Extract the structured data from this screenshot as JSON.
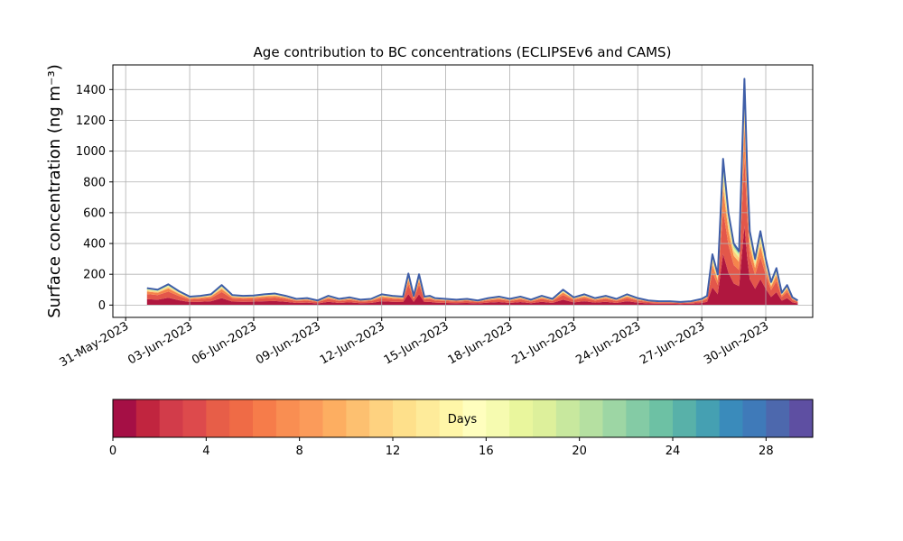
{
  "chart_data": {
    "type": "area",
    "title": "Age contribution to BC concentrations (ECLIPSEv6 and CAMS)",
    "xlabel": "",
    "ylabel": "Surface concentration (ng m⁻³)",
    "ylim": [
      -80,
      1560
    ],
    "y_ticks": [
      0,
      200,
      400,
      600,
      800,
      1000,
      1200,
      1400
    ],
    "x_ticks": [
      "31-May-2023",
      "03-Jun-2023",
      "06-Jun-2023",
      "09-Jun-2023",
      "12-Jun-2023",
      "15-Jun-2023",
      "18-Jun-2023",
      "21-Jun-2023",
      "24-Jun-2023",
      "27-Jun-2023",
      "30-Jun-2023"
    ],
    "x_start": "01-Jun-2023",
    "x_end": "01-Jul-2023",
    "grid": true,
    "colorbar": {
      "label": "Days",
      "range": [
        0,
        30
      ],
      "ticks": [
        0,
        4,
        8,
        12,
        16,
        20,
        24,
        28
      ],
      "colors": [
        "#a50f45",
        "#c1253f",
        "#d23c4a",
        "#dd4a4c",
        "#e75e48",
        "#ef6b46",
        "#f67c4a",
        "#f98e52",
        "#fb9b5a",
        "#fdae61",
        "#fdc070",
        "#fed280",
        "#fee08b",
        "#feeb9a",
        "#fff6a8",
        "#fffebe",
        "#f6fbb0",
        "#e9f69d",
        "#ddf09b",
        "#c8e89e",
        "#b5e0a1",
        "#9dd6a4",
        "#84cba5",
        "#6dc1a4",
        "#58b1a9",
        "#45a0b2",
        "#3a8bbb",
        "#3f7ab9",
        "#4d68ad",
        "#5e4fa2"
      ]
    },
    "total_series": {
      "name": "",
      "x": [
        "01-Jun-2023 00:00",
        "01-Jun-2023 12:00",
        "02-Jun-2023 00:00",
        "02-Jun-2023 12:00",
        "03-Jun-2023 00:00",
        "03-Jun-2023 12:00",
        "04-Jun-2023 00:00",
        "04-Jun-2023 12:00",
        "05-Jun-2023 00:00",
        "05-Jun-2023 12:00",
        "06-Jun-2023 00:00",
        "06-Jun-2023 12:00",
        "07-Jun-2023 00:00",
        "07-Jun-2023 12:00",
        "08-Jun-2023 00:00",
        "08-Jun-2023 12:00",
        "09-Jun-2023 00:00",
        "09-Jun-2023 12:00",
        "10-Jun-2023 00:00",
        "10-Jun-2023 12:00",
        "11-Jun-2023 00:00",
        "11-Jun-2023 12:00",
        "12-Jun-2023 00:00",
        "12-Jun-2023 12:00",
        "13-Jun-2023 00:00",
        "13-Jun-2023 06:00",
        "13-Jun-2023 12:00",
        "13-Jun-2023 18:00",
        "14-Jun-2023 00:00",
        "14-Jun-2023 06:00",
        "14-Jun-2023 12:00",
        "15-Jun-2023 00:00",
        "15-Jun-2023 12:00",
        "16-Jun-2023 00:00",
        "16-Jun-2023 12:00",
        "17-Jun-2023 00:00",
        "17-Jun-2023 12:00",
        "18-Jun-2023 00:00",
        "18-Jun-2023 12:00",
        "19-Jun-2023 00:00",
        "19-Jun-2023 12:00",
        "20-Jun-2023 00:00",
        "20-Jun-2023 12:00",
        "21-Jun-2023 00:00",
        "21-Jun-2023 12:00",
        "22-Jun-2023 00:00",
        "22-Jun-2023 12:00",
        "23-Jun-2023 00:00",
        "23-Jun-2023 12:00",
        "24-Jun-2023 00:00",
        "24-Jun-2023 12:00",
        "25-Jun-2023 00:00",
        "25-Jun-2023 12:00",
        "26-Jun-2023 00:00",
        "26-Jun-2023 12:00",
        "27-Jun-2023 00:00",
        "27-Jun-2023 06:00",
        "27-Jun-2023 12:00",
        "27-Jun-2023 18:00",
        "28-Jun-2023 00:00",
        "28-Jun-2023 06:00",
        "28-Jun-2023 12:00",
        "28-Jun-2023 18:00",
        "29-Jun-2023 00:00",
        "29-Jun-2023 03:00",
        "29-Jun-2023 06:00",
        "29-Jun-2023 12:00",
        "29-Jun-2023 18:00",
        "30-Jun-2023 00:00",
        "30-Jun-2023 06:00",
        "30-Jun-2023 12:00",
        "30-Jun-2023 18:00",
        "01-Jul-2023 00:00",
        "01-Jul-2023 06:00",
        "01-Jul-2023 12:00"
      ],
      "y": [
        110,
        100,
        135,
        90,
        55,
        60,
        70,
        130,
        65,
        60,
        62,
        70,
        75,
        60,
        40,
        45,
        30,
        60,
        40,
        50,
        35,
        40,
        70,
        60,
        55,
        205,
        60,
        200,
        55,
        60,
        45,
        40,
        35,
        40,
        30,
        45,
        55,
        40,
        55,
        35,
        60,
        40,
        100,
        50,
        70,
        45,
        60,
        40,
        70,
        45,
        30,
        25,
        25,
        20,
        25,
        40,
        60,
        330,
        200,
        950,
        600,
        400,
        350,
        1470,
        900,
        480,
        300,
        480,
        300,
        150,
        240,
        80,
        130,
        50,
        30
      ]
    },
    "age_bands": [
      {
        "days": "0-4",
        "share": 0.35
      },
      {
        "days": "4-8",
        "share": 0.3
      },
      {
        "days": "8-12",
        "share": 0.15
      },
      {
        "days": "12-16",
        "share": 0.08
      },
      {
        "days": "16-20",
        "share": 0.05
      },
      {
        "days": "20-24",
        "share": 0.03
      },
      {
        "days": "24-28",
        "share": 0.02
      },
      {
        "days": "28-30",
        "share": 0.02
      }
    ]
  }
}
